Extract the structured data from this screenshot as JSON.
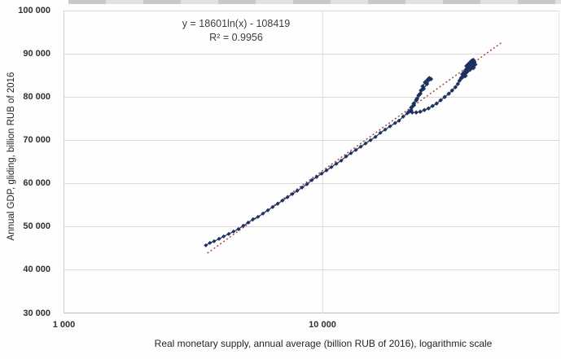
{
  "figure": {
    "equation_line1": "y = 18601ln(x) - 108419",
    "equation_line2": "R² = 0.9956",
    "x_axis_title": "Real monetary supply, annual average (billion RUB of 2016), logarithmic scale",
    "y_axis_title": "Annual GDP,  gliding, billion RUB of 2016"
  },
  "chart_data": {
    "type": "scatter",
    "title": "",
    "xlabel": "Real monetary supply, annual average (billion RUB of 2016), logarithmic scale",
    "ylabel": "Annual GDP, gliding, billion RUB of 2016",
    "x_scale": "log",
    "xlim": [
      1000,
      82000
    ],
    "ylim": [
      30000,
      100000
    ],
    "grid": "horizontal",
    "legend": "none",
    "x_ticks": [
      {
        "label": "1 000",
        "value": 1000
      },
      {
        "label": "10 000",
        "value": 10000
      }
    ],
    "y_ticks": [
      {
        "label": "100 000",
        "value": 100000
      },
      {
        "label": "90 000",
        "value": 90000
      },
      {
        "label": "80 000",
        "value": 80000
      },
      {
        "label": "70 000",
        "value": 70000
      },
      {
        "label": "60 000",
        "value": 60000
      },
      {
        "label": "50 000",
        "value": 50000
      },
      {
        "label": "40 000",
        "value": 40000
      },
      {
        "label": "30 000",
        "value": 30000
      }
    ],
    "trendline": {
      "equation": "y = 18601ln(x) - 108419",
      "r2": 0.9956,
      "a": 18601,
      "b": -108419,
      "x_start": 3590,
      "x_end": 49800,
      "color": "#a84642",
      "style": "dotted"
    },
    "series": [
      {
        "name": "annual-gdp-vs-real-money-supply",
        "color": "#1e3260",
        "line_color": "#2b4070",
        "segments": [
          {
            "name": "pre-crisis-growth",
            "marker_size": 2.1,
            "points": [
              [
                3540,
                45660
              ],
              [
                3670,
                46230
              ],
              [
                3810,
                46600
              ],
              [
                3980,
                47170
              ],
              [
                4150,
                47740
              ],
              [
                4340,
                48300
              ],
              [
                4530,
                48870
              ],
              [
                4730,
                49430
              ],
              [
                4940,
                50190
              ],
              [
                5160,
                50940
              ],
              [
                5390,
                51700
              ],
              [
                5630,
                52260
              ],
              [
                5890,
                53020
              ],
              [
                6150,
                53770
              ],
              [
                6420,
                54530
              ],
              [
                6710,
                55280
              ],
              [
                7010,
                56040
              ],
              [
                7320,
                56790
              ],
              [
                7650,
                57550
              ],
              [
                7990,
                58300
              ],
              [
                8340,
                59060
              ],
              [
                8710,
                59810
              ],
              [
                9100,
                60750
              ],
              [
                9500,
                61510
              ],
              [
                9930,
                62260
              ],
              [
                10370,
                63020
              ],
              [
                10830,
                63770
              ],
              [
                11310,
                64530
              ],
              [
                11820,
                65280
              ],
              [
                12350,
                66230
              ],
              [
                12890,
                66980
              ],
              [
                13470,
                67740
              ],
              [
                14070,
                68490
              ],
              [
                14690,
                69250
              ],
              [
                15350,
                70000
              ],
              [
                16030,
                70750
              ],
              [
                16750,
                71700
              ],
              [
                17490,
                72450
              ],
              [
                18270,
                73210
              ],
              [
                19090,
                73960
              ],
              [
                19790,
                74530
              ],
              [
                20530,
                75470
              ],
              [
                21290,
                76230
              ],
              [
                22070,
                76980
              ]
            ]
          },
          {
            "name": "boom-spur-to-2008-peak",
            "marker_size": 2.5,
            "points": [
              [
                22560,
                78110
              ],
              [
                23060,
                79250
              ],
              [
                23560,
                80380
              ],
              [
                24080,
                81510
              ],
              [
                24430,
                82450
              ],
              [
                24970,
                83400
              ],
              [
                25520,
                83960
              ],
              [
                25890,
                84340
              ],
              [
                26270,
                84150
              ]
            ]
          },
          {
            "name": "crisis-retracement",
            "marker_size": 2.5,
            "points": [
              [
                25350,
                83020
              ],
              [
                24620,
                81890
              ],
              [
                23900,
                80760
              ],
              [
                23220,
                79620
              ],
              [
                22560,
                78490
              ],
              [
                22070,
                77550
              ],
              [
                21600,
                76600
              ]
            ]
          },
          {
            "name": "recovery",
            "marker_size": 2.3,
            "points": [
              [
                22230,
                76420
              ],
              [
                23060,
                76420
              ],
              [
                23900,
                76600
              ],
              [
                24790,
                76980
              ],
              [
                25710,
                77360
              ],
              [
                26660,
                77920
              ],
              [
                27650,
                78490
              ],
              [
                28670,
                79250
              ],
              [
                29730,
                80000
              ],
              [
                30830,
                80760
              ],
              [
                31750,
                81510
              ],
              [
                32680,
                82260
              ],
              [
                33400,
                83020
              ],
              [
                33880,
                83770
              ],
              [
                34380,
                84340
              ]
            ]
          },
          {
            "name": "stagnation-cluster-2013-2016",
            "marker_size": 2.8,
            "points": [
              [
                34630,
                84530
              ],
              [
                35140,
                85090
              ],
              [
                35650,
                85470
              ],
              [
                36170,
                85850
              ],
              [
                35390,
                85660
              ],
              [
                34880,
                85280
              ],
              [
                35910,
                86230
              ],
              [
                36430,
                86600
              ],
              [
                36960,
                86980
              ],
              [
                37500,
                87170
              ],
              [
                36700,
                87550
              ],
              [
                36170,
                87170
              ],
              [
                37230,
                87920
              ],
              [
                37780,
                88300
              ],
              [
                38330,
                88490
              ],
              [
                38050,
                87740
              ],
              [
                38610,
                88110
              ],
              [
                38890,
                87550
              ],
              [
                38330,
                86790
              ],
              [
                37230,
                86420
              ],
              [
                36430,
                86040
              ],
              [
                35650,
                84910
              ]
            ]
          }
        ]
      }
    ]
  }
}
